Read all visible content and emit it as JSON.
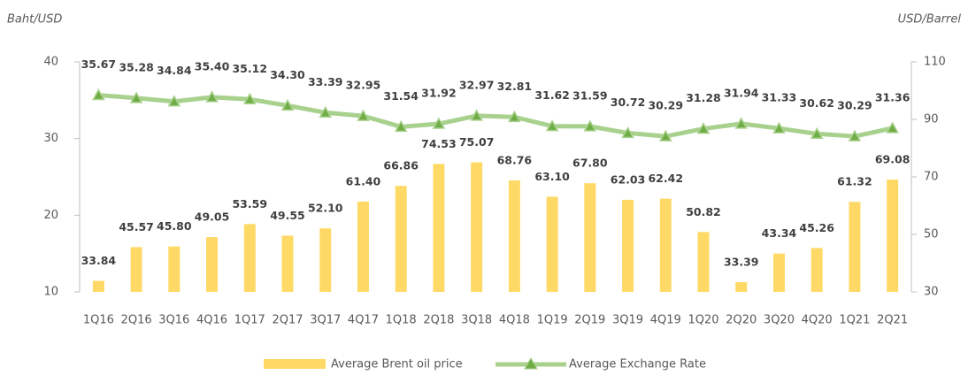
{
  "chart_data": {
    "type": "bar-line",
    "y_label": "Baht/USD",
    "y2_label": "USD/Barrel",
    "categories": [
      "1Q16",
      "2Q16",
      "3Q16",
      "4Q16",
      "1Q17",
      "2Q17",
      "3Q17",
      "4Q17",
      "1Q18",
      "2Q18",
      "3Q18",
      "4Q18",
      "1Q19",
      "2Q19",
      "3Q19",
      "4Q19",
      "1Q20",
      "2Q20",
      "3Q20",
      "4Q20",
      "1Q21",
      "2Q21"
    ],
    "series": [
      {
        "name": "Average Brent oil price",
        "type": "bar",
        "axis": "y2",
        "color": "#ffd966",
        "values": [
          33.84,
          45.57,
          45.8,
          49.05,
          53.59,
          49.55,
          52.1,
          61.4,
          66.86,
          74.53,
          75.07,
          68.76,
          63.1,
          67.8,
          62.03,
          62.42,
          50.82,
          33.39,
          43.34,
          45.26,
          61.32,
          69.08
        ],
        "value_labels": [
          "33.84",
          "45.57",
          "45.80",
          "49.05",
          "53.59",
          "49.55",
          "52.10",
          "61.40",
          "66.86",
          "74.53",
          "75.07",
          "68.76",
          "63.10",
          "67.80",
          "62.03",
          "62.42",
          "50.82",
          "33.39",
          "43.34",
          "45.26",
          "61.32",
          "69.08"
        ]
      },
      {
        "name": "Average Exchange Rate",
        "type": "line",
        "axis": "y",
        "color": "#a9d18e",
        "marker_color": "#70ad47",
        "values": [
          35.67,
          35.28,
          34.84,
          35.4,
          35.12,
          34.3,
          33.39,
          32.95,
          31.54,
          31.92,
          32.97,
          32.81,
          31.62,
          31.59,
          30.72,
          30.29,
          31.28,
          31.94,
          31.33,
          30.62,
          30.29,
          31.36
        ],
        "value_labels": [
          "35.67",
          "35.28",
          "34.84",
          "35.40",
          "35.12",
          "34.30",
          "33.39",
          "32.95",
          "31.54",
          "31.92",
          "32.97",
          "32.81",
          "31.62",
          "31.59",
          "30.72",
          "30.29",
          "31.28",
          "31.94",
          "31.33",
          "30.62",
          "30.29",
          "31.36"
        ]
      }
    ],
    "ylim": [
      10,
      40
    ],
    "yticks": [
      10,
      20,
      30,
      40
    ],
    "y2lim": [
      30,
      110
    ],
    "y2ticks": [
      30,
      50,
      70,
      90,
      110
    ]
  }
}
